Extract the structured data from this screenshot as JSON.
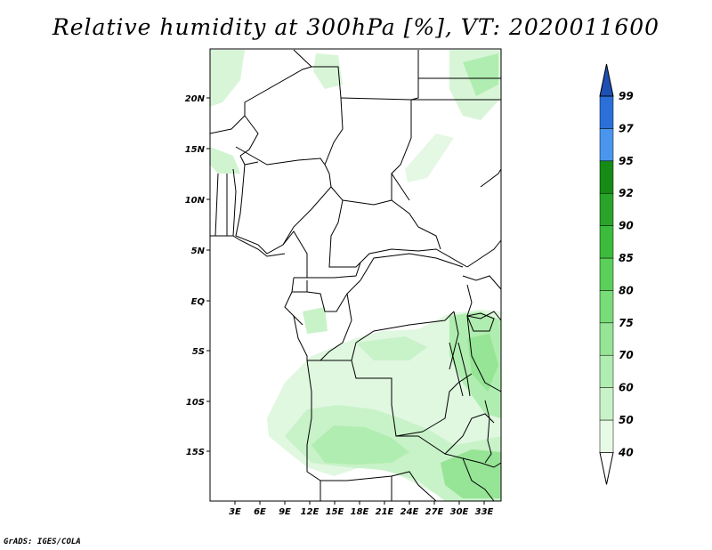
{
  "title": "Relative humidity at 300hPa [%], VT: 2020011600",
  "credit": "GrADS: IGES/COLA",
  "map": {
    "lat_labels": [
      "20N",
      "15N",
      "10N",
      "5N",
      "EQ",
      "5S",
      "10S",
      "15S"
    ],
    "lon_labels": [
      "3E",
      "6E",
      "9E",
      "12E",
      "15E",
      "18E",
      "21E",
      "24E",
      "27E",
      "30E",
      "33E"
    ]
  },
  "colorbar": {
    "levels": [
      "40",
      "50",
      "60",
      "70",
      "75",
      "80",
      "85",
      "90",
      "92",
      "95",
      "97",
      "99"
    ],
    "colors": [
      "#ffffff",
      "#e6fae6",
      "#c8f2c8",
      "#b0edb0",
      "#96e496",
      "#78dc78",
      "#5ad05a",
      "#3cbc3c",
      "#28a428",
      "#168c16",
      "#4a96ee",
      "#2a70d8",
      "#1e4fb4"
    ]
  }
}
